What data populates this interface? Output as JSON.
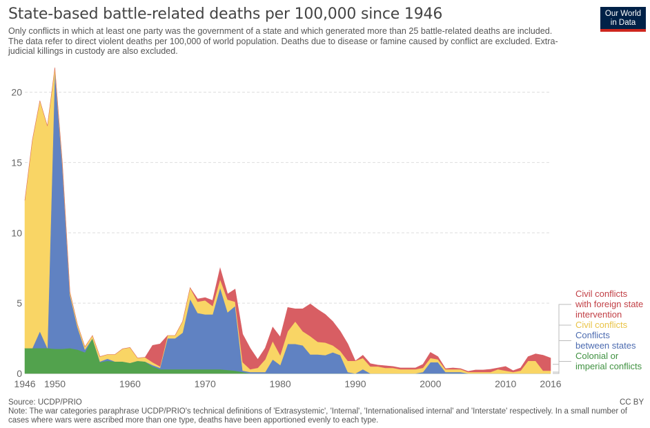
{
  "title": "State-based battle-related deaths per 100,000 since 1946",
  "subtitle": "Only conflicts in which at least one party was the government of a state and which generated more than 25 battle-related deaths are included. The data refer to direct violent deaths per 100,000 of world population. Deaths due to disease or famine caused by conflict are excluded. Extra-judicial killings in custody are also excluded.",
  "logo": {
    "line1": "Our World",
    "line2": "in Data"
  },
  "source": "Source: UCDP/PRIO",
  "note": "Note: The war categories paraphrase UCDP/PRIO's technical definitions of 'Extrasystemic', 'Internal', 'Internationalised internal' and 'Interstate' respectively. In a small number of cases where wars were ascribed more than one type, deaths have been apportioned evenly to each type.",
  "license": "CC BY",
  "chart_data": {
    "type": "area",
    "stacked": true,
    "xlim": [
      1946,
      2016
    ],
    "ylim": [
      0,
      21.5
    ],
    "yticks": [
      0,
      5,
      10,
      15,
      20
    ],
    "xtick_labels": [
      "1946",
      "1950",
      "1960",
      "1970",
      "1980",
      "1990",
      "2000",
      "2010",
      "2016"
    ],
    "xticks": [
      1946,
      1950,
      1960,
      1970,
      1980,
      1990,
      2000,
      2010,
      2016
    ],
    "grid": "horizontal dashed",
    "legend": "right, labels at series end",
    "x": [
      1946,
      1947,
      1948,
      1949,
      1950,
      1951,
      1952,
      1953,
      1954,
      1955,
      1956,
      1957,
      1958,
      1959,
      1960,
      1961,
      1962,
      1963,
      1964,
      1965,
      1966,
      1967,
      1968,
      1969,
      1970,
      1971,
      1972,
      1973,
      1974,
      1975,
      1976,
      1977,
      1978,
      1979,
      1980,
      1981,
      1982,
      1983,
      1984,
      1985,
      1986,
      1987,
      1988,
      1989,
      1990,
      1991,
      1992,
      1993,
      1994,
      1995,
      1996,
      1997,
      1998,
      1999,
      2000,
      2001,
      2002,
      2003,
      2004,
      2005,
      2006,
      2007,
      2008,
      2009,
      2010,
      2011,
      2012,
      2013,
      2014,
      2015,
      2016
    ],
    "series": [
      {
        "name": "Colonial or imperial conflicts",
        "color": "#52a24d",
        "values": [
          1.8,
          1.8,
          1.8,
          1.8,
          1.75,
          1.75,
          1.8,
          1.7,
          1.5,
          2.5,
          0.8,
          0.9,
          0.85,
          0.85,
          0.75,
          0.9,
          0.85,
          0.5,
          0.3,
          0.3,
          0.3,
          0.3,
          0.3,
          0.3,
          0.3,
          0.3,
          0.3,
          0.25,
          0.2,
          0.1,
          0,
          0,
          0,
          0,
          0,
          0,
          0,
          0,
          0,
          0,
          0,
          0,
          0,
          0,
          0,
          0,
          0,
          0,
          0,
          0,
          0,
          0,
          0,
          0,
          0,
          0,
          0,
          0,
          0,
          0,
          0,
          0,
          0,
          0,
          0,
          0,
          0,
          0,
          0,
          0,
          0
        ]
      },
      {
        "name": "Conflicts between states",
        "color": "#6082c2",
        "values": [
          0,
          0,
          1.2,
          0,
          19.8,
          13.0,
          3.8,
          1.6,
          0.2,
          0,
          0.05,
          0.15,
          0,
          0,
          0,
          0,
          0,
          0.1,
          0.1,
          2.2,
          2.2,
          2.6,
          5.0,
          4.0,
          3.9,
          3.9,
          5.8,
          4.1,
          4.6,
          0.1,
          0.1,
          0.1,
          0.1,
          1.0,
          0.6,
          2.1,
          2.1,
          2.0,
          1.35,
          1.35,
          1.3,
          1.5,
          1.3,
          0.1,
          0,
          0.3,
          0,
          0,
          0,
          0,
          0,
          0,
          0,
          0.1,
          0.8,
          0.8,
          0.1,
          0.1,
          0.1,
          0,
          0,
          0,
          0,
          0,
          0,
          0,
          0,
          0,
          0,
          0,
          0
        ]
      },
      {
        "name": "Civil conflicts",
        "color": "#f9d565",
        "values": [
          10.5,
          14.8,
          16.4,
          15.8,
          0.2,
          0.2,
          0.2,
          0.2,
          0.2,
          0.2,
          0.35,
          0.3,
          0.5,
          0.9,
          1.1,
          0.2,
          0.3,
          0.2,
          0.1,
          0.2,
          0.2,
          0.8,
          0.8,
          0.8,
          1.0,
          0.6,
          0.6,
          0.9,
          0.3,
          0.6,
          0.2,
          0.3,
          0.9,
          1.3,
          0.7,
          0.9,
          1.6,
          1.0,
          1.3,
          0.9,
          0.9,
          0.5,
          0.3,
          0.8,
          0.9,
          0.8,
          0.5,
          0.5,
          0.4,
          0.4,
          0.3,
          0.3,
          0.3,
          0.3,
          0.3,
          0.2,
          0.2,
          0.2,
          0.2,
          0.1,
          0.1,
          0.1,
          0.1,
          0.3,
          0.2,
          0.1,
          0.2,
          0.9,
          0.9,
          0.2,
          0.2
        ]
      },
      {
        "name": "Civil conflicts with foreign state intervention",
        "color": "#d85e63",
        "values": [
          0,
          0,
          0,
          0,
          0,
          0,
          0,
          0,
          0,
          0,
          0,
          0,
          0,
          0,
          0,
          0,
          0,
          1.2,
          1.6,
          0,
          0,
          0,
          0,
          0.2,
          0.2,
          0.4,
          0.8,
          0.4,
          0.9,
          2.0,
          1.5,
          0.6,
          0.8,
          1.0,
          1.3,
          1.7,
          0.9,
          1.6,
          2.3,
          2.3,
          2.0,
          1.7,
          1.4,
          1.2,
          0,
          0.2,
          0.2,
          0.1,
          0.15,
          0.1,
          0.1,
          0.1,
          0.1,
          0.25,
          0.4,
          0.2,
          0.05,
          0.1,
          0.05,
          0.05,
          0.15,
          0.15,
          0.2,
          0.1,
          0.3,
          0.1,
          0.2,
          0.3,
          0.5,
          1.1,
          0.9
        ]
      }
    ]
  },
  "legend_labels": [
    {
      "lines": [
        "Civil conflicts",
        "with foreign state",
        "intervention"
      ],
      "color": "#c13f45"
    },
    {
      "lines": [
        "Civil conflicts"
      ],
      "color": "#e9c346"
    },
    {
      "lines": [
        "Conflicts",
        "between states"
      ],
      "color": "#4c6bb0"
    },
    {
      "lines": [
        "Colonial or",
        "imperial conflicts"
      ],
      "color": "#3f9140"
    }
  ]
}
